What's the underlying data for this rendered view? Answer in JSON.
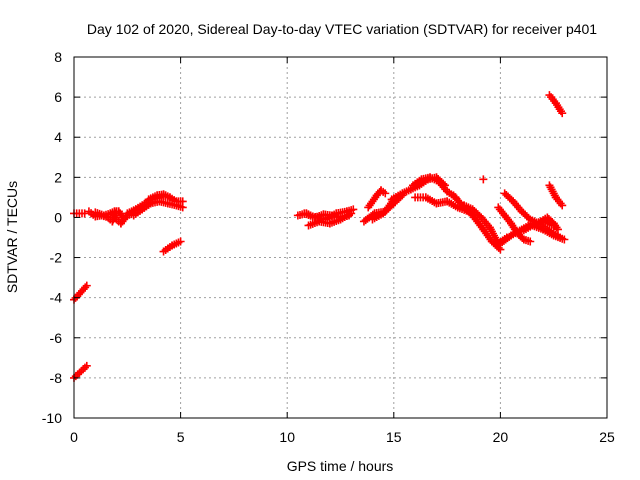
{
  "chart_data": {
    "type": "scatter",
    "title": "Day 102 of 2020, Sidereal Day-to-day VTEC variation (SDTVAR) for receiver p401",
    "xlabel": "GPS time / hours",
    "ylabel": "SDTVAR / TECUs",
    "xlim": [
      0,
      25
    ],
    "ylim": [
      -10,
      8
    ],
    "xticks": [
      0,
      5,
      10,
      15,
      20,
      25
    ],
    "yticks": [
      -10,
      -8,
      -6,
      -4,
      -2,
      0,
      2,
      4,
      6,
      8
    ],
    "grid": true,
    "legend": "none",
    "marker": "plus",
    "colors": {
      "series": "#ff0000",
      "grid": "#a0a0a0",
      "axis": "#000000"
    },
    "series": [
      {
        "name": "SDTVAR",
        "segments": [
          {
            "x": [
              0.0,
              0.6
            ],
            "y": [
              -8.0,
              -7.4
            ]
          },
          {
            "x": [
              0.0,
              0.6
            ],
            "y": [
              -4.1,
              -3.4
            ]
          },
          {
            "x": [
              0.0,
              0.5
            ],
            "y": [
              0.2,
              0.2
            ]
          },
          {
            "x": [
              0.7,
              1.0,
              1.3,
              1.6,
              1.8,
              2.0
            ],
            "y": [
              0.3,
              0.05,
              0.1,
              0.0,
              -0.2,
              0.3
            ]
          },
          {
            "x": [
              1.0,
              1.4,
              1.7,
              1.9,
              2.1,
              2.3
            ],
            "y": [
              0.25,
              0.1,
              0.2,
              0.3,
              0.3,
              0.0
            ]
          },
          {
            "x": [
              1.8,
              2.0,
              2.2,
              2.5,
              2.8
            ],
            "y": [
              0.2,
              -0.1,
              -0.3,
              0.1,
              0.2
            ]
          },
          {
            "x": [
              2.5,
              2.8,
              3.2,
              3.6,
              4.0,
              4.3
            ],
            "y": [
              0.2,
              0.35,
              0.6,
              0.9,
              1.0,
              1.1
            ]
          },
          {
            "x": [
              2.8,
              3.2,
              3.6,
              4.0,
              4.4,
              4.8,
              5.1
            ],
            "y": [
              0.1,
              0.4,
              0.7,
              0.8,
              0.7,
              0.6,
              0.5
            ]
          },
          {
            "x": [
              3.5,
              3.9,
              4.2,
              4.5,
              4.8,
              5.1
            ],
            "y": [
              0.9,
              1.1,
              1.15,
              1.0,
              0.8,
              0.8
            ]
          },
          {
            "x": [
              4.2,
              4.6,
              5.0
            ],
            "y": [
              -1.7,
              -1.4,
              -1.2
            ]
          },
          {
            "x": [
              10.5,
              10.9,
              11.3,
              11.7,
              12.1,
              12.5,
              12.9
            ],
            "y": [
              0.1,
              0.2,
              0.0,
              0.15,
              0.1,
              0.0,
              0.1
            ]
          },
          {
            "x": [
              11.0,
              11.5,
              12.0,
              12.5,
              13.0
            ],
            "y": [
              -0.4,
              -0.2,
              -0.3,
              -0.1,
              0.2
            ]
          },
          {
            "x": [
              10.8,
              11.2,
              11.8,
              12.3,
              12.8,
              13.1
            ],
            "y": [
              0.2,
              0.05,
              -0.1,
              0.2,
              0.3,
              0.4
            ]
          },
          {
            "x": [
              13.6,
              14.1,
              14.6,
              15.0
            ],
            "y": [
              -0.2,
              0.2,
              0.3,
              0.9
            ]
          },
          {
            "x": [
              13.8,
              14.2,
              14.4,
              14.6
            ],
            "y": [
              0.5,
              1.1,
              1.35,
              1.2
            ]
          },
          {
            "x": [
              14.0,
              14.5,
              14.9,
              15.4
            ],
            "y": [
              -0.1,
              0.2,
              0.6,
              1.1
            ]
          },
          {
            "x": [
              14.9,
              15.4,
              15.8,
              16.2,
              16.6,
              17.0,
              17.4
            ],
            "y": [
              0.9,
              1.2,
              1.4,
              1.6,
              1.9,
              2.0,
              1.6
            ]
          },
          {
            "x": [
              15.9,
              16.3,
              16.7,
              17.1,
              17.5,
              17.9
            ],
            "y": [
              1.6,
              1.9,
              2.0,
              1.8,
              1.3,
              1.0
            ]
          },
          {
            "x": [
              16.0,
              16.5,
              17.0,
              17.5,
              18.0,
              18.5
            ],
            "y": [
              1.0,
              1.0,
              0.7,
              0.8,
              0.5,
              0.3
            ]
          },
          {
            "x": [
              17.8,
              18.3,
              18.7,
              19.2,
              19.6,
              20.0
            ],
            "y": [
              1.1,
              0.5,
              0.1,
              -0.6,
              -1.2,
              -1.6
            ]
          },
          {
            "x": [
              18.3,
              18.7,
              19.1,
              19.5,
              19.9,
              20.3
            ],
            "y": [
              0.6,
              0.4,
              0.0,
              -0.5,
              -1.3,
              -1.0
            ]
          },
          {
            "x": [
              19.2
            ],
            "y": [
              1.9
            ]
          },
          {
            "x": [
              19.9,
              20.2,
              20.5,
              20.8,
              21.1,
              21.4
            ],
            "y": [
              0.5,
              0.1,
              -0.3,
              -0.8,
              -1.1,
              -1.2
            ]
          },
          {
            "x": [
              20.2,
              20.6,
              21.0,
              21.4,
              21.8,
              22.2,
              22.8
            ],
            "y": [
              1.2,
              0.8,
              0.3,
              -0.1,
              -0.3,
              -0.6,
              -1.0
            ]
          },
          {
            "x": [
              20.0,
              20.5,
              21.0,
              21.5,
              22.0,
              22.5
            ],
            "y": [
              -1.3,
              -0.9,
              -0.6,
              -0.3,
              -0.2,
              -0.4
            ]
          },
          {
            "x": [
              21.0,
              21.5,
              22.0,
              22.5,
              23.0
            ],
            "y": [
              -0.7,
              -0.4,
              -0.6,
              -0.9,
              -1.1
            ]
          },
          {
            "x": [
              21.5,
              21.9,
              22.2,
              22.5,
              22.7
            ],
            "y": [
              -0.4,
              -0.2,
              0.0,
              -0.3,
              -0.6
            ]
          },
          {
            "x": [
              22.3,
              22.6,
              22.9
            ],
            "y": [
              1.6,
              1.0,
              0.6
            ]
          },
          {
            "x": [
              22.3,
              22.6,
              22.9
            ],
            "y": [
              6.1,
              5.7,
              5.2
            ]
          }
        ]
      }
    ]
  }
}
